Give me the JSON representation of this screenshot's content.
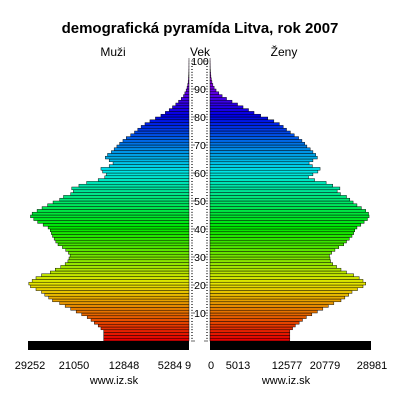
{
  "chart_data": {
    "type": "bar",
    "title": "demografická pyramída Litva, rok 2007",
    "labels": {
      "left": "Muži",
      "center": "Vek",
      "right": "Ženy"
    },
    "source": [
      "www.iz.sk",
      "www.iz.sk"
    ],
    "x_ticks_left": [
      "29252",
      "21050",
      "12848",
      "5284",
      "9"
    ],
    "x_ticks_right": [
      "0",
      "5013",
      "12577",
      "20779",
      "28981"
    ],
    "age_ticks": [
      10,
      20,
      30,
      40,
      50,
      60,
      70,
      80,
      90,
      100
    ],
    "ages": [
      0,
      1,
      2,
      3,
      4,
      5,
      6,
      7,
      8,
      9,
      10,
      11,
      12,
      13,
      14,
      15,
      16,
      17,
      18,
      19,
      20,
      21,
      22,
      23,
      24,
      25,
      26,
      27,
      28,
      29,
      30,
      31,
      32,
      33,
      34,
      35,
      36,
      37,
      38,
      39,
      40,
      41,
      42,
      43,
      44,
      45,
      46,
      47,
      48,
      49,
      50,
      51,
      52,
      53,
      54,
      55,
      56,
      57,
      58,
      59,
      60,
      61,
      62,
      63,
      64,
      65,
      66,
      67,
      68,
      69,
      70,
      71,
      72,
      73,
      74,
      75,
      76,
      77,
      78,
      79,
      80,
      81,
      82,
      83,
      84,
      85,
      86,
      87,
      88,
      89,
      90,
      91,
      92,
      93,
      94,
      95,
      96,
      97,
      98,
      99,
      100
    ],
    "series": [
      {
        "name": "Muži",
        "values": [
          15500,
          15500,
          15500,
          15500,
          16000,
          16500,
          17200,
          17800,
          18500,
          19500,
          20500,
          21500,
          22500,
          23500,
          24800,
          25500,
          26200,
          26800,
          27800,
          28800,
          29100,
          28500,
          27800,
          26800,
          25200,
          24300,
          23300,
          22500,
          22000,
          21800,
          21600,
          21900,
          22400,
          23000,
          23800,
          24200,
          24500,
          24800,
          25000,
          25200,
          25600,
          26500,
          27500,
          28200,
          28800,
          28500,
          27600,
          26700,
          25700,
          24700,
          23500,
          22800,
          21500,
          21000,
          21300,
          20000,
          18600,
          16500,
          15300,
          15000,
          15700,
          16000,
          14500,
          13800,
          14500,
          15200,
          14800,
          14100,
          13600,
          13100,
          12600,
          12000,
          11400,
          10600,
          9900,
          9300,
          8700,
          8000,
          7100,
          6100,
          5100,
          4300,
          3600,
          3000,
          2400,
          1900,
          1400,
          1000,
          750,
          520,
          350,
          230,
          150,
          100,
          70,
          45,
          30,
          20,
          15,
          10,
          5
        ]
      },
      {
        "name": "Ženy",
        "values": [
          14500,
          14500,
          14500,
          14500,
          15000,
          15500,
          16200,
          16800,
          17500,
          18500,
          19500,
          20500,
          21500,
          22500,
          23800,
          24500,
          25200,
          25800,
          26800,
          27800,
          28300,
          27800,
          27100,
          26100,
          24800,
          23800,
          23000,
          22300,
          21900,
          21800,
          21700,
          22100,
          22700,
          23400,
          24300,
          24800,
          25300,
          25800,
          26100,
          26300,
          26700,
          27400,
          28000,
          28600,
          28900,
          28800,
          28300,
          27500,
          26700,
          26000,
          25400,
          24800,
          23700,
          23100,
          23600,
          22300,
          21100,
          19000,
          17900,
          18700,
          19600,
          20000,
          18600,
          18000,
          18700,
          19500,
          19200,
          18700,
          18200,
          17600,
          17200,
          16700,
          16100,
          15300,
          14600,
          13900,
          13300,
          12600,
          11600,
          10500,
          9200,
          8000,
          7000,
          6000,
          5000,
          4000,
          3000,
          2200,
          1600,
          1100,
          750,
          520,
          350,
          240,
          160,
          110,
          70,
          45,
          30,
          20,
          10
        ]
      }
    ],
    "xlim": [
      0,
      29252
    ],
    "age_range": [
      0,
      100
    ]
  }
}
